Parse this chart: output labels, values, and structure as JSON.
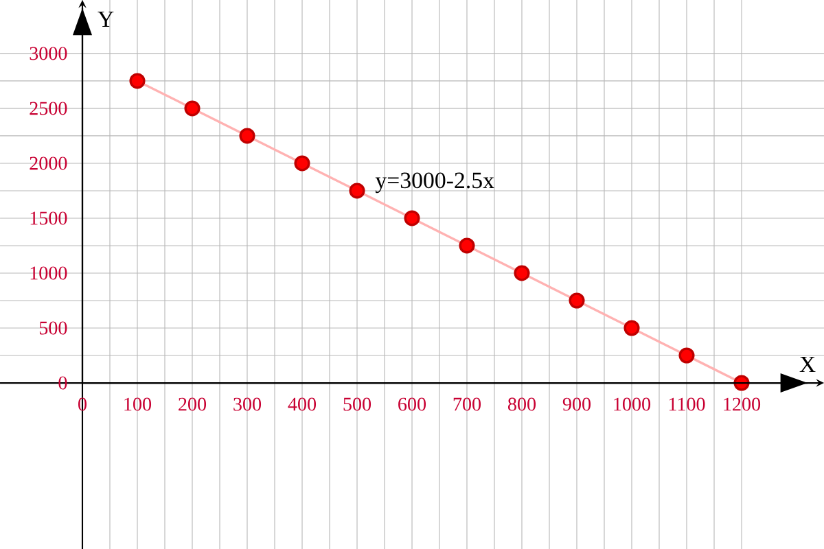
{
  "chart_data": {
    "type": "line",
    "xlabel": "X",
    "ylabel": "Y",
    "x": [
      100,
      200,
      300,
      400,
      500,
      600,
      700,
      800,
      900,
      1000,
      1100,
      1200
    ],
    "series": [
      {
        "color": "#ff0000",
        "values": [
          2750,
          2500,
          2250,
          2000,
          1750,
          1500,
          1250,
          1000,
          750,
          500,
          250,
          0
        ]
      }
    ],
    "xlim": [
      -150,
      1350
    ],
    "ylim": [
      -1512,
      3487
    ],
    "xticks": [
      0,
      100,
      200,
      300,
      400,
      500,
      600,
      700,
      800,
      900,
      1000,
      1100,
      1200
    ],
    "yticks": [
      0,
      500,
      1000,
      1500,
      2000,
      2500,
      3000
    ],
    "annotations": [
      "y=3000-2.5x"
    ],
    "grid": true,
    "marker": "circle",
    "line_style": "solid"
  }
}
